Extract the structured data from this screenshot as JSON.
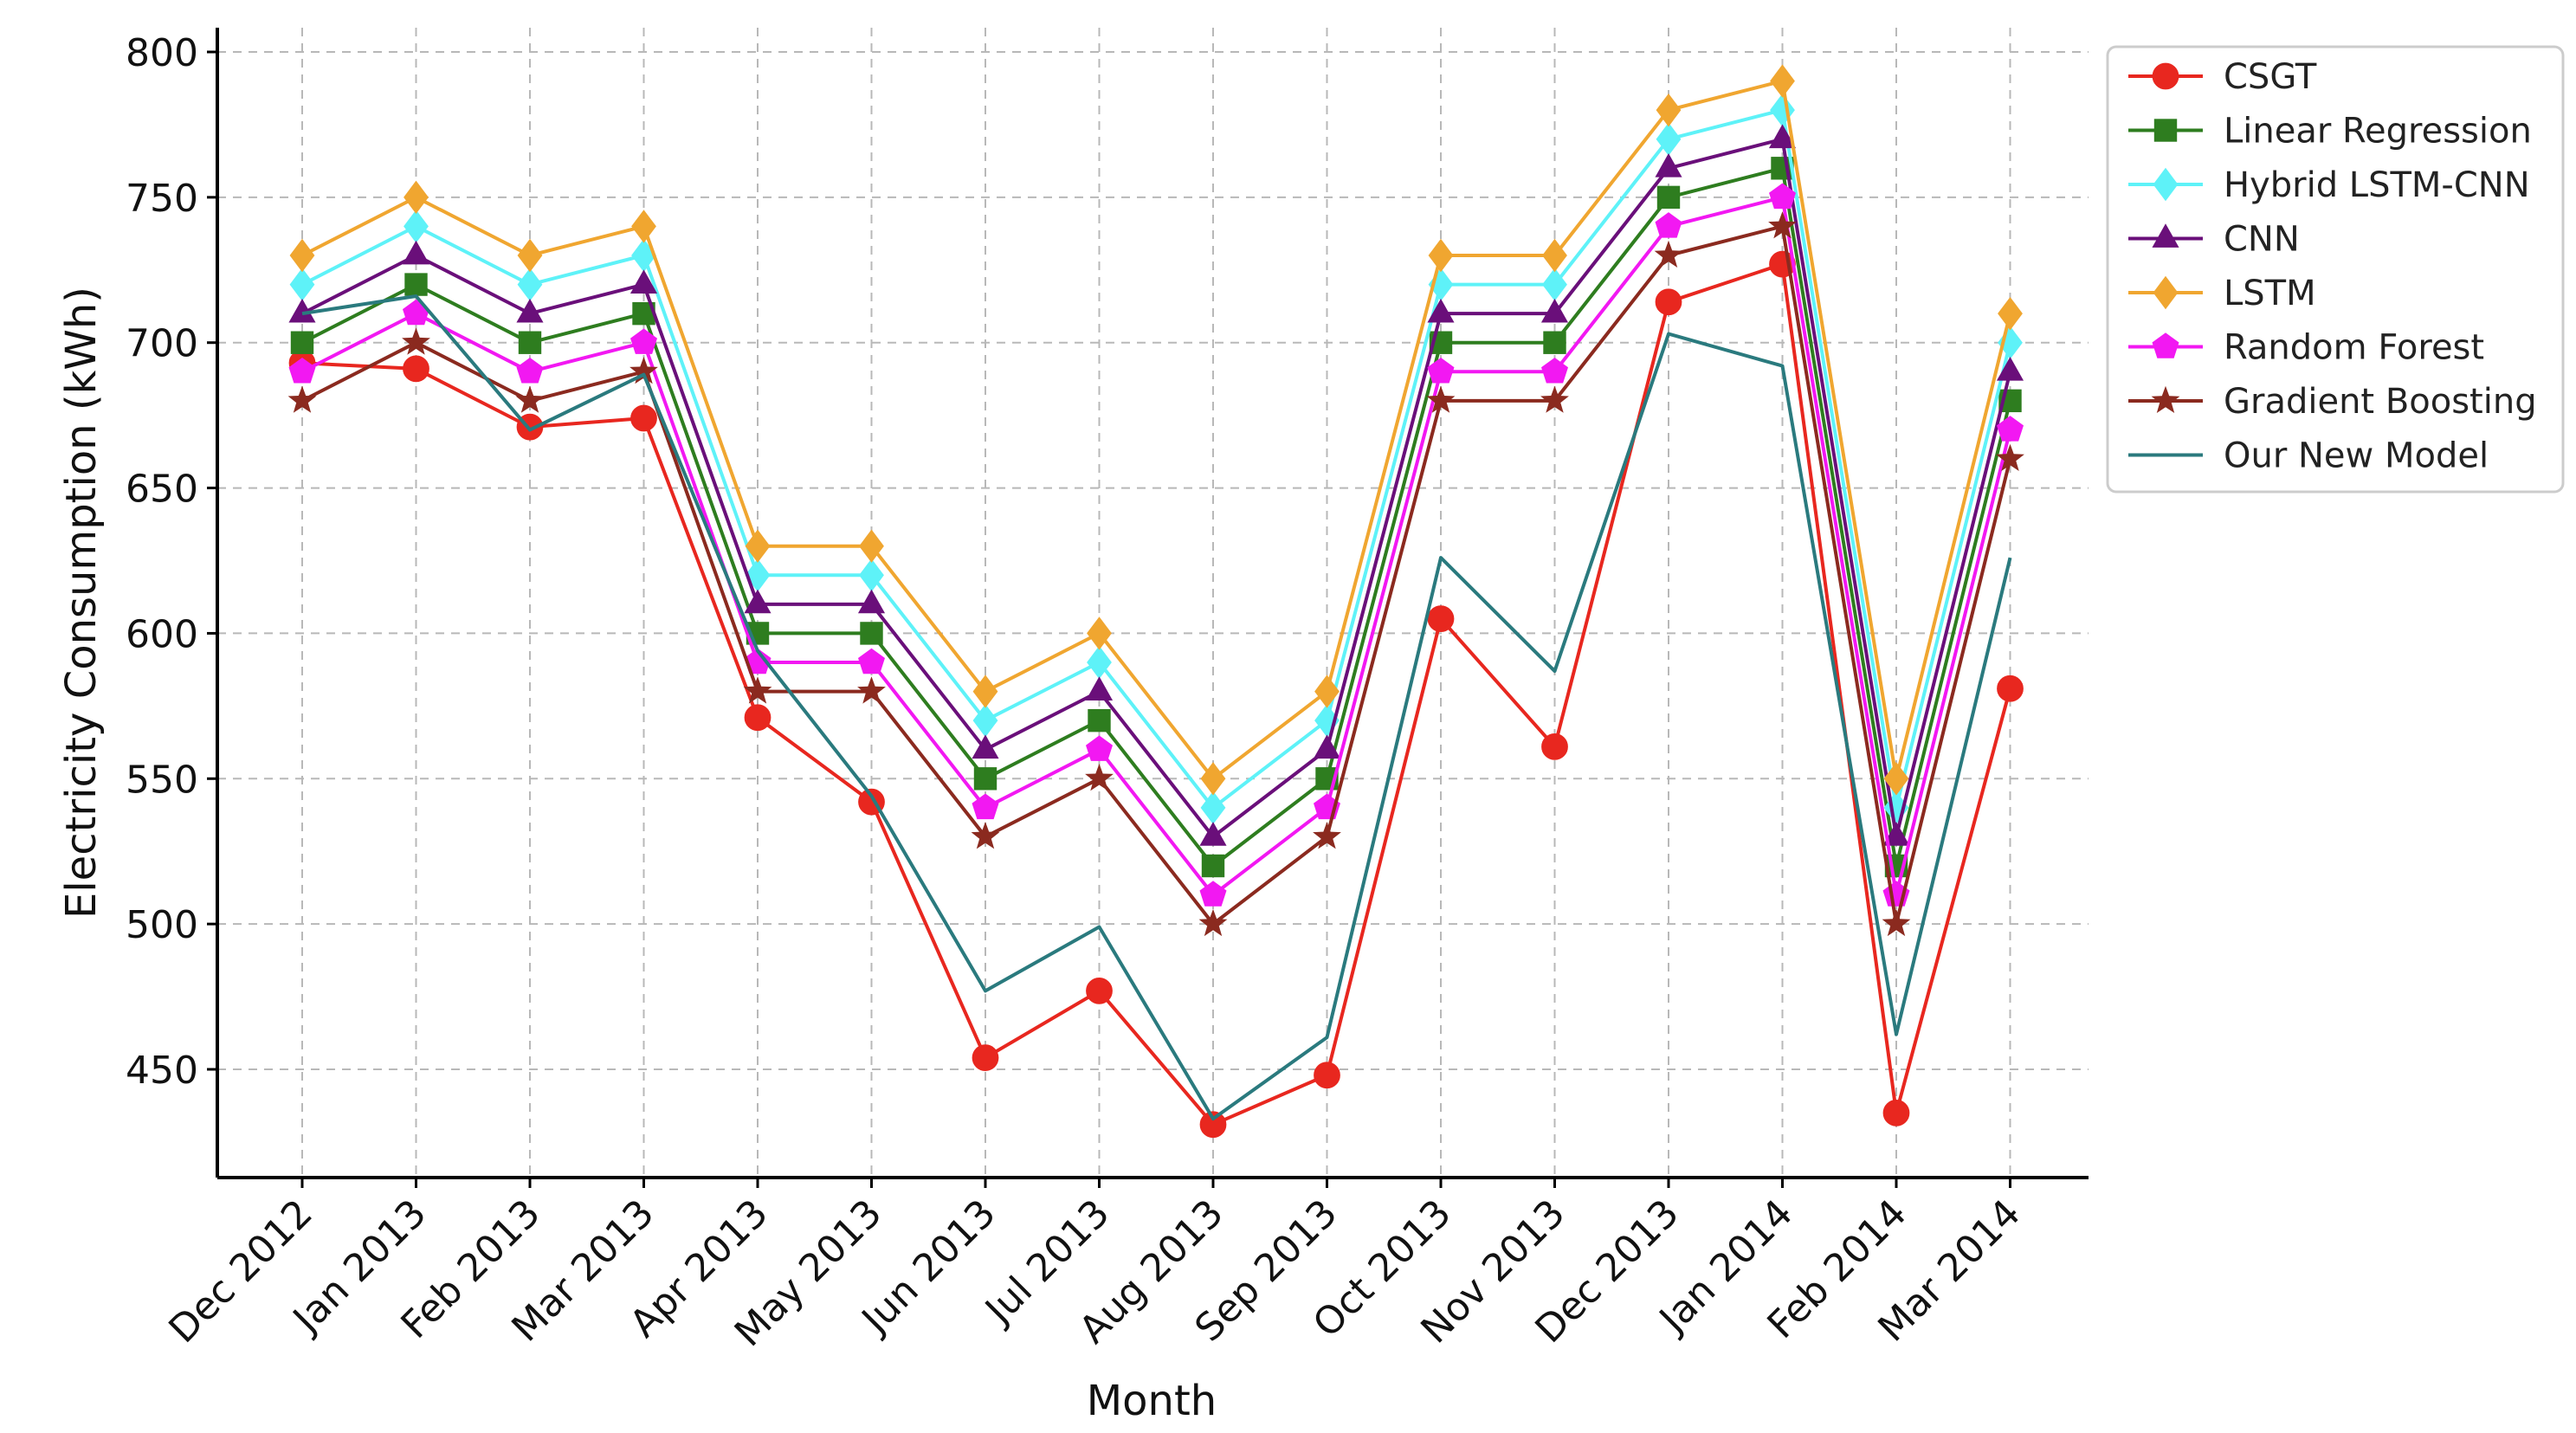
{
  "chart_data": {
    "type": "line",
    "title": "",
    "xlabel": "Month",
    "ylabel": "Electricity Consumption (kWh)",
    "ylim": [
      420,
      810
    ],
    "yticks": [
      450,
      500,
      550,
      600,
      650,
      700,
      750,
      800
    ],
    "grid": true,
    "legend_position": "top-right",
    "categories": [
      "Dec 2012",
      "Jan 2013",
      "Feb 2013",
      "Mar 2013",
      "Apr 2013",
      "May 2013",
      "Jun 2013",
      "Jul 2013",
      "Aug 2013",
      "Sep 2013",
      "Oct 2013",
      "Nov 2013",
      "Dec 2013",
      "Jan 2014",
      "Feb 2014",
      "Mar 2014"
    ],
    "series": [
      {
        "name": "CSGT",
        "color": "#e8271f",
        "marker": "circle",
        "values": [
          693,
          691,
          671,
          674,
          571,
          542,
          454,
          477,
          431,
          448,
          605,
          561,
          714,
          727,
          435,
          581
        ]
      },
      {
        "name": "Linear Regression",
        "color": "#2e7d1f",
        "marker": "square",
        "values": [
          700,
          720,
          700,
          710,
          600,
          600,
          550,
          570,
          520,
          550,
          700,
          700,
          750,
          760,
          520,
          680
        ]
      },
      {
        "name": "Hybrid LSTM-CNN",
        "color": "#5ef2f8",
        "marker": "diamond",
        "values": [
          720,
          740,
          720,
          730,
          620,
          620,
          570,
          590,
          540,
          570,
          720,
          720,
          770,
          780,
          540,
          700
        ]
      },
      {
        "name": "CNN",
        "color": "#6a0f7a",
        "marker": "triangle",
        "values": [
          710,
          730,
          710,
          720,
          610,
          610,
          560,
          580,
          530,
          560,
          710,
          710,
          760,
          770,
          530,
          690
        ]
      },
      {
        "name": "LSTM",
        "color": "#f0a630",
        "marker": "diamond",
        "values": [
          730,
          750,
          730,
          740,
          630,
          630,
          580,
          600,
          550,
          580,
          730,
          730,
          780,
          790,
          550,
          710
        ]
      },
      {
        "name": "Random Forest",
        "color": "#f218f2",
        "marker": "pentagon",
        "values": [
          690,
          710,
          690,
          700,
          590,
          590,
          540,
          560,
          510,
          540,
          690,
          690,
          740,
          750,
          510,
          670
        ]
      },
      {
        "name": "Gradient Boosting",
        "color": "#8b2a1f",
        "marker": "star",
        "values": [
          680,
          700,
          680,
          690,
          580,
          580,
          530,
          550,
          500,
          530,
          680,
          680,
          730,
          740,
          500,
          660
        ]
      },
      {
        "name": "Our New Model",
        "color": "#2a7a7e",
        "marker": "none",
        "values": [
          710,
          716,
          670,
          689,
          594,
          544,
          477,
          499,
          433,
          461,
          626,
          587,
          703,
          692,
          462,
          626
        ]
      }
    ]
  }
}
